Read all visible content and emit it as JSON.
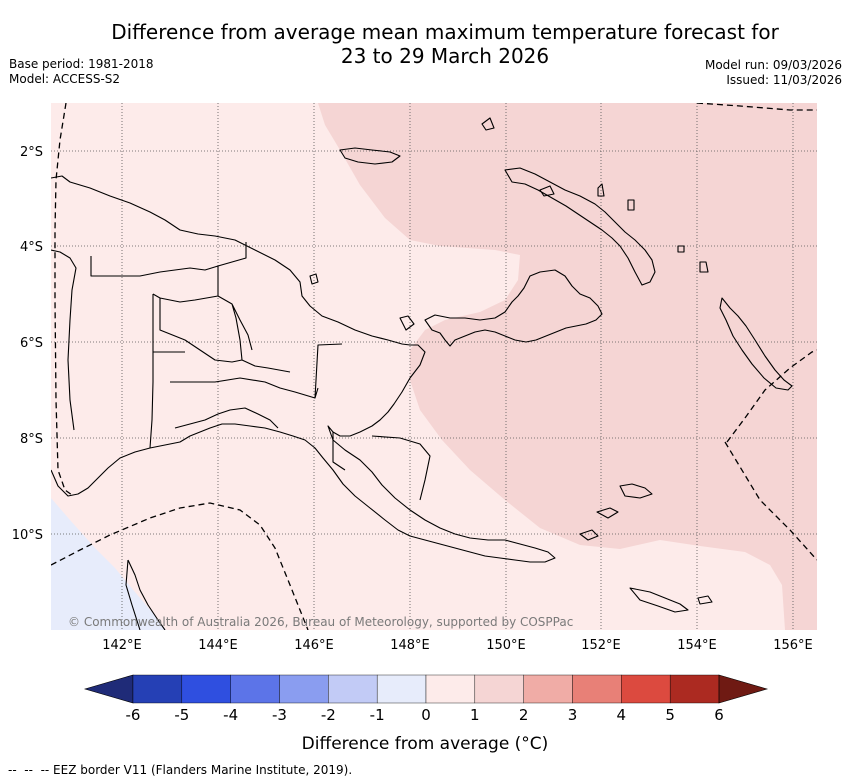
{
  "title": {
    "line1": "Difference from average mean maximum temperature forecast for",
    "line2": "23 to 29 March 2026"
  },
  "meta_left": {
    "base_period": "Base period: 1981-2018",
    "model": "Model: ACCESS-S2"
  },
  "meta_right": {
    "model_run": "Model run: 09/03/2026",
    "issued": "Issued: 11/03/2026"
  },
  "map": {
    "lat_labels": [
      "2°S",
      "4°S",
      "6°S",
      "8°S",
      "10°S"
    ],
    "lon_labels": [
      "142°E",
      "144°E",
      "146°E",
      "148°E",
      "150°E",
      "152°E",
      "154°E",
      "156°E"
    ],
    "attribution": "© Commonwealth of Australia 2026, Bureau of Meteorology, supported by COSPPac",
    "colors": {
      "anomaly_0_to_1": "#fdebea",
      "anomaly_1_to_2": "#f5d5d4",
      "anomaly_-1_to_0": "#e7ecfb",
      "coastline": "#000000",
      "eez": "#000000",
      "grid": "#444444"
    }
  },
  "colorbar": {
    "ticks": [
      "-6",
      "-5",
      "-4",
      "-3",
      "-2",
      "-1",
      "0",
      "1",
      "2",
      "3",
      "4",
      "5",
      "6"
    ],
    "colors": [
      "#1f2b78",
      "#2540b5",
      "#2f4fe0",
      "#5c74e8",
      "#8a9df0",
      "#c2cbf6",
      "#e7ecfb",
      "#fdebea",
      "#f5d5d4",
      "#f0aca6",
      "#e88077",
      "#dc4a3f",
      "#ac2a21",
      "#6f1a13"
    ],
    "title": "Difference from average (°C)"
  },
  "legend": {
    "eez": "--  --  -- EEZ border V11 (Flanders Marine Institute, 2019)."
  }
}
